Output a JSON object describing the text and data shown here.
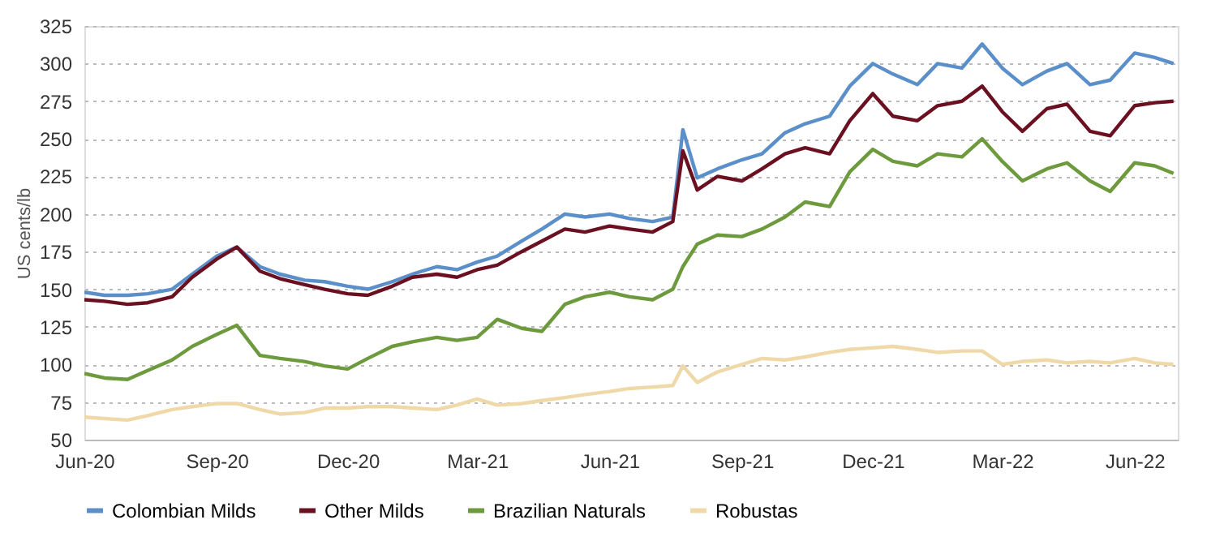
{
  "chart_data": {
    "type": "line",
    "ylabel": "US cents/lb",
    "x": [
      "2020-06-01",
      "2020-06-15",
      "2020-07-01",
      "2020-07-15",
      "2020-08-01",
      "2020-08-15",
      "2020-09-01",
      "2020-09-15",
      "2020-10-01",
      "2020-10-15",
      "2020-11-01",
      "2020-11-15",
      "2020-12-01",
      "2020-12-15",
      "2021-01-01",
      "2021-01-15",
      "2021-02-01",
      "2021-02-15",
      "2021-03-01",
      "2021-03-15",
      "2021-04-01",
      "2021-04-15",
      "2021-05-01",
      "2021-05-15",
      "2021-06-01",
      "2021-06-15",
      "2021-07-01",
      "2021-07-15",
      "2021-07-22",
      "2021-08-01",
      "2021-08-15",
      "2021-09-01",
      "2021-09-15",
      "2021-10-01",
      "2021-10-15",
      "2021-11-01",
      "2021-11-15",
      "2021-12-01",
      "2021-12-15",
      "2022-01-01",
      "2022-01-15",
      "2022-02-01",
      "2022-02-15",
      "2022-03-01",
      "2022-03-15",
      "2022-04-01",
      "2022-04-15",
      "2022-05-01",
      "2022-05-15",
      "2022-06-01",
      "2022-06-15",
      "2022-06-28"
    ],
    "series": [
      {
        "name": "Colombian Milds",
        "color": "#5b8fc9",
        "values": [
          148,
          146,
          146,
          147,
          150,
          160,
          172,
          178,
          165,
          160,
          156,
          155,
          152,
          150,
          155,
          160,
          165,
          163,
          168,
          172,
          182,
          190,
          200,
          198,
          200,
          197,
          195,
          198,
          256,
          224,
          230,
          236,
          240,
          254,
          260,
          265,
          285,
          300,
          293,
          286,
          300,
          297,
          313,
          297,
          286,
          295,
          300,
          286,
          289,
          307,
          304,
          300
        ]
      },
      {
        "name": "Other Milds",
        "color": "#6b1020",
        "values": [
          143,
          142,
          140,
          141,
          145,
          158,
          170,
          178,
          162,
          157,
          153,
          150,
          147,
          146,
          152,
          158,
          160,
          158,
          163,
          166,
          175,
          182,
          190,
          188,
          192,
          190,
          188,
          195,
          242,
          216,
          225,
          222,
          230,
          240,
          244,
          240,
          262,
          280,
          265,
          262,
          272,
          275,
          285,
          268,
          255,
          270,
          273,
          255,
          252,
          272,
          274,
          275
        ]
      },
      {
        "name": "Brazilian Naturals",
        "color": "#6e9a3e",
        "values": [
          94,
          91,
          90,
          96,
          103,
          112,
          120,
          126,
          106,
          104,
          102,
          99,
          97,
          104,
          112,
          115,
          118,
          116,
          118,
          130,
          124,
          122,
          140,
          145,
          148,
          145,
          143,
          150,
          165,
          180,
          186,
          185,
          190,
          198,
          208,
          205,
          228,
          243,
          235,
          232,
          240,
          238,
          250,
          235,
          222,
          230,
          234,
          222,
          215,
          234,
          232,
          227
        ]
      },
      {
        "name": "Robustas",
        "color": "#f0d9a8",
        "values": [
          65,
          64,
          63,
          66,
          70,
          72,
          74,
          74,
          70,
          67,
          68,
          71,
          71,
          72,
          72,
          71,
          70,
          73,
          77,
          73,
          74,
          76,
          78,
          80,
          82,
          84,
          85,
          86,
          99,
          88,
          95,
          100,
          104,
          103,
          105,
          108,
          110,
          111,
          112,
          110,
          108,
          109,
          109,
          100,
          102,
          103,
          101,
          102,
          101,
          104,
          101,
          100
        ]
      }
    ],
    "xlim": [
      "2020-06-01",
      "2022-07-01"
    ],
    "xticks": [
      {
        "value": "2020-06-01",
        "label": "Jun-20"
      },
      {
        "value": "2020-09-01",
        "label": "Sep-20"
      },
      {
        "value": "2020-12-01",
        "label": "Dec-20"
      },
      {
        "value": "2021-03-01",
        "label": "Mar-21"
      },
      {
        "value": "2021-06-01",
        "label": "Jun-21"
      },
      {
        "value": "2021-09-01",
        "label": "Sep-21"
      },
      {
        "value": "2021-12-01",
        "label": "Dec-21"
      },
      {
        "value": "2022-03-01",
        "label": "Mar-22"
      },
      {
        "value": "2022-06-01",
        "label": "Jun-22"
      }
    ],
    "ylim": [
      50,
      325
    ],
    "yticks": [
      50,
      75,
      100,
      125,
      150,
      175,
      200,
      225,
      250,
      275,
      300,
      325
    ],
    "grid": "y",
    "legend": "bottom"
  }
}
